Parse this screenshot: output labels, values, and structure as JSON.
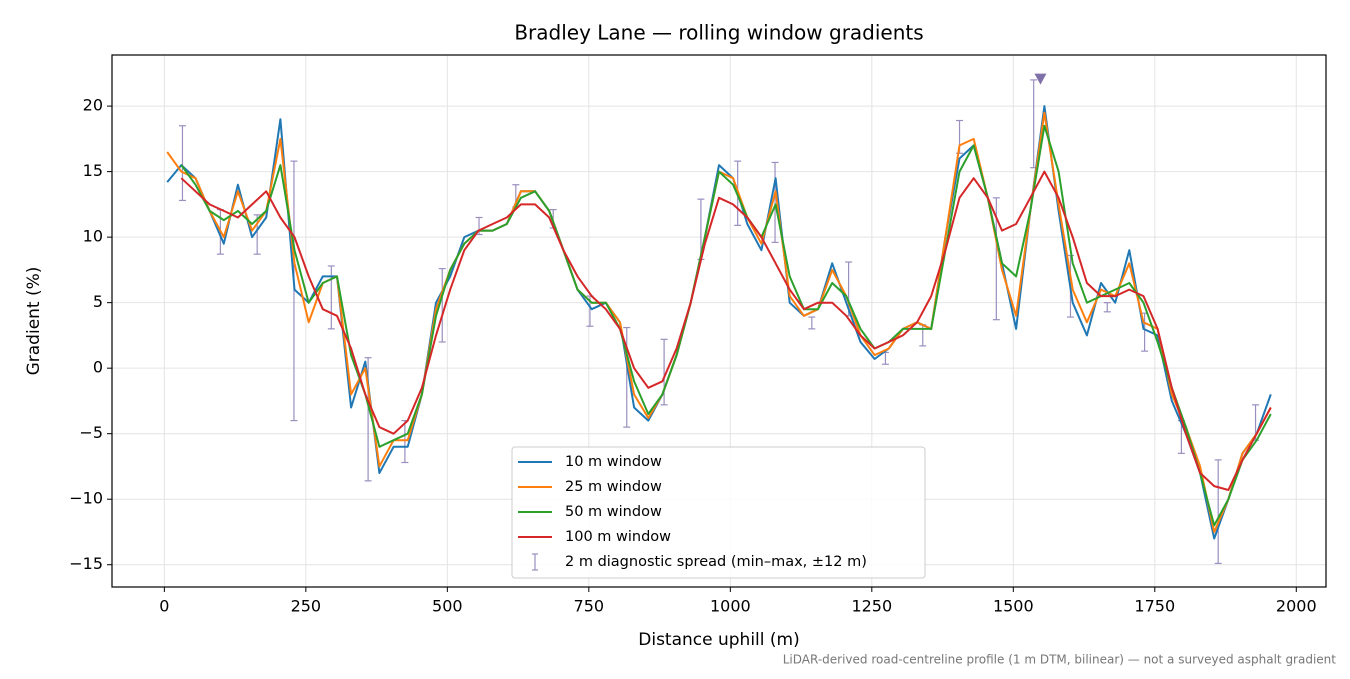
{
  "chart_data": {
    "type": "line",
    "title": "Bradley Lane — rolling window gradients",
    "xlabel": "Distance uphill (m)",
    "ylabel": "Gradient (%)",
    "footnote": "LiDAR-derived road-centreline profile (1 m DTM, bilinear) — not a surveyed asphalt gradient",
    "xlim": [
      -92.5,
      2052.5
    ],
    "ylim": [
      -16.7,
      23.9
    ],
    "xticks": [
      0,
      250,
      500,
      750,
      1000,
      1250,
      1500,
      1750,
      2000
    ],
    "yticks": [
      {
        "value": -15,
        "label": "−15"
      },
      {
        "value": -10,
        "label": "−10"
      },
      {
        "value": -5,
        "label": "−5"
      },
      0,
      5,
      10,
      15,
      20
    ],
    "grid": true,
    "legend": "lower center",
    "x": [
      5,
      30,
      55,
      80,
      105,
      130,
      155,
      180,
      205,
      230,
      255,
      280,
      305,
      330,
      355,
      380,
      405,
      430,
      455,
      480,
      505,
      530,
      555,
      580,
      605,
      630,
      655,
      680,
      705,
      730,
      755,
      780,
      805,
      830,
      855,
      880,
      905,
      930,
      955,
      980,
      1005,
      1030,
      1055,
      1080,
      1105,
      1130,
      1155,
      1180,
      1205,
      1230,
      1255,
      1280,
      1305,
      1330,
      1355,
      1380,
      1405,
      1430,
      1455,
      1480,
      1505,
      1530,
      1555,
      1580,
      1605,
      1630,
      1655,
      1680,
      1705,
      1730,
      1755,
      1780,
      1805,
      1830,
      1855,
      1880,
      1905,
      1930,
      1955
    ],
    "series": [
      {
        "name": "10 m window",
        "color": "#1f77b4",
        "values": [
          14.2,
          15.5,
          14.5,
          12,
          9.5,
          14,
          10,
          11.5,
          19,
          6,
          5,
          7,
          7,
          -3,
          0.5,
          -8,
          -6,
          -6,
          -2,
          5,
          7,
          10,
          10.5,
          10.5,
          11,
          13.5,
          13.5,
          12,
          9,
          6,
          4.5,
          5,
          3.5,
          -3,
          -4,
          -2,
          1,
          5,
          10,
          15.5,
          14.5,
          11,
          9,
          14.5,
          5,
          4,
          4.5,
          8,
          5,
          2,
          0.7,
          1.5,
          3,
          3.5,
          3,
          10,
          16,
          17,
          13,
          8,
          3,
          12,
          20,
          12,
          5,
          2.5,
          6.5,
          5,
          9,
          3,
          2.5,
          -2.5,
          -5,
          -8,
          -13,
          -10,
          -6.5,
          -5,
          -2
        ]
      },
      {
        "name": "25 m window",
        "color": "#ff7f0e",
        "values": [
          16.5,
          15,
          14.5,
          12,
          10,
          13.5,
          10.5,
          12,
          17.5,
          8,
          3.5,
          6.5,
          7,
          -2,
          0,
          -7.5,
          -5.5,
          -5.5,
          -2,
          4.5,
          7.5,
          9.5,
          10.5,
          10.5,
          11,
          13.5,
          13.5,
          12,
          9,
          6,
          5,
          5,
          3.5,
          -2,
          -3.8,
          -2,
          1,
          5,
          10,
          15,
          14.5,
          11.5,
          9.5,
          13.5,
          5.5,
          4,
          4.5,
          7.5,
          5.5,
          2.5,
          1,
          1.5,
          3,
          3.5,
          3,
          10,
          17,
          17.5,
          13,
          7.5,
          4,
          12,
          19.5,
          12.5,
          6,
          3.5,
          6,
          5.5,
          8,
          3.5,
          3,
          -2,
          -4.5,
          -7.5,
          -12.5,
          -10,
          -6.5,
          -5,
          -3
        ]
      },
      {
        "name": "50 m window",
        "color": "#2ca02c",
        "values": [
          null,
          15.5,
          14,
          12,
          11.3,
          12,
          11,
          12,
          15.5,
          9,
          5,
          6.5,
          7,
          1,
          -2,
          -6,
          -5.5,
          -5,
          -2,
          4,
          7.5,
          9.5,
          10.5,
          10.5,
          11,
          13,
          13.5,
          12,
          9,
          6,
          5,
          5,
          3,
          -1,
          -3.5,
          -2,
          1,
          5,
          10,
          15,
          14,
          11.5,
          10,
          12.5,
          7,
          4.5,
          4.5,
          6.5,
          5.5,
          3,
          1.5,
          2,
          3,
          3,
          3,
          9,
          15,
          17,
          13,
          8,
          7,
          12,
          18.5,
          15,
          8,
          5,
          5.5,
          6,
          6.5,
          5,
          2,
          -1.5,
          -4.5,
          -8,
          -12,
          -10,
          -7,
          -5.5,
          -3.5
        ]
      },
      {
        "name": "100 m window",
        "color": "#d62728",
        "values": [
          null,
          14.5,
          13.5,
          12.5,
          12,
          11.5,
          12.5,
          13.5,
          11.5,
          10,
          7,
          4.5,
          4,
          1.5,
          -2,
          -4.5,
          -5,
          -4,
          -1.5,
          2.5,
          6,
          9,
          10.5,
          11,
          11.5,
          12.5,
          12.5,
          11.5,
          9,
          7,
          5.5,
          4.5,
          3,
          0,
          -1.5,
          -1,
          1.5,
          5,
          9.5,
          13,
          12.5,
          11.5,
          10,
          8,
          6,
          4.5,
          5,
          5,
          4,
          2.5,
          1.5,
          2,
          2.5,
          3.5,
          5.5,
          9,
          13,
          14.5,
          13,
          10.5,
          11,
          13,
          15,
          13,
          10,
          6.5,
          5.5,
          5.5,
          6,
          5.5,
          3,
          -1.5,
          -5,
          -8,
          -9,
          -9.3,
          -7,
          -5,
          -3
        ]
      }
    ],
    "spread": {
      "name": "2 m diagnostic spread (min–max, ±12 m)",
      "color": "#9a8fbf",
      "x": [
        32,
        99,
        164,
        229,
        295,
        360,
        425,
        491,
        556,
        621,
        687,
        752,
        817,
        883,
        948,
        1013,
        1079,
        1144,
        1209,
        1274,
        1340,
        1405,
        1470,
        1536,
        1601,
        1666,
        1732,
        1797,
        1862,
        1928
      ],
      "low": [
        12.8,
        8.7,
        8.7,
        -4,
        3,
        -8.6,
        -7.2,
        2,
        10.2,
        12.3,
        10.7,
        3.2,
        -4.5,
        -2.8,
        8.3,
        10.9,
        9.6,
        3,
        4,
        0.3,
        1.7,
        16.4,
        3.7,
        15.3,
        3.9,
        4.3,
        1.3,
        -6.5,
        -14.9,
        -5.5
      ],
      "high": [
        18.5,
        12.1,
        11.7,
        15.8,
        7.8,
        0.8,
        -4,
        7.6,
        11.5,
        14,
        12.1,
        5.5,
        3.1,
        2.2,
        12.9,
        15.8,
        15.7,
        3.9,
        8.1,
        1.2,
        3.3,
        18.9,
        13,
        22,
        8.6,
        5,
        4.2,
        -4,
        -7,
        -2.8
      ]
    },
    "peak_marker": {
      "x": 1548,
      "y": 22.1,
      "color": "#8070a8"
    }
  }
}
